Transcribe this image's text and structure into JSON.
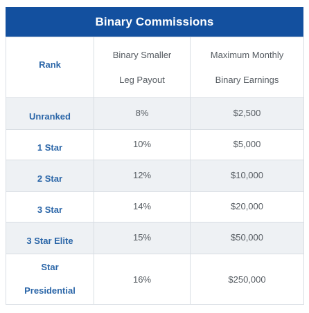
{
  "title": "Binary Commissions",
  "header": {
    "rank": "Rank",
    "payout_line1": "Binary Smaller",
    "payout_line2": "Leg Payout",
    "earnings_line1": "Maximum Monthly",
    "earnings_line2": "Binary Earnings"
  },
  "rows": [
    {
      "rank": "Unranked",
      "payout": "8%",
      "max": "$2,500"
    },
    {
      "rank": "1 Star",
      "payout": "10%",
      "max": "$5,000"
    },
    {
      "rank": "2 Star",
      "payout": "12%",
      "max": "$10,000"
    },
    {
      "rank": "3 Star",
      "payout": "14%",
      "max": "$20,000"
    },
    {
      "rank": "3 Star Elite",
      "payout": "15%",
      "max": "$50,000"
    },
    {
      "rank_line1": "Star",
      "rank_line2": "Presidential",
      "payout": "16%",
      "max": "$250,000"
    }
  ]
}
